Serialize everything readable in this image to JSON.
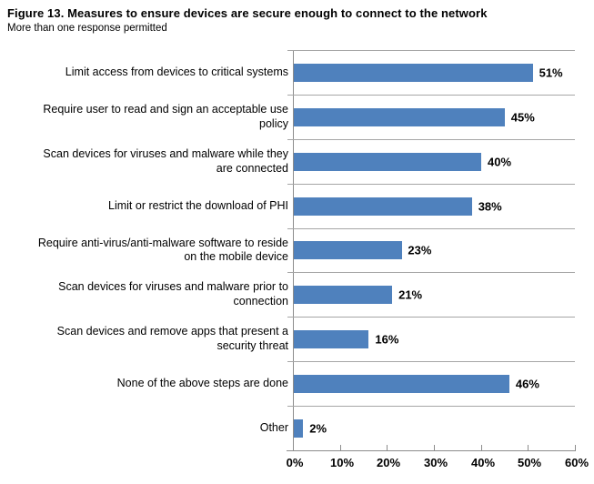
{
  "colors": {
    "bar": "#4F81BD",
    "gridline": "#A6A6A6",
    "axis": "#8C8C8C",
    "text": "#000000",
    "background": "#FFFFFF"
  },
  "chart_data": {
    "type": "bar",
    "orientation": "horizontal",
    "title": "Figure 13. Measures to ensure devices are secure enough to connect to the network",
    "subtitle": "More than one response permitted",
    "categories": [
      "Limit access from devices to critical systems",
      "Require user to read and sign an acceptable use\npolicy",
      "Scan devices for viruses and malware while they\nare connected",
      "Limit or restrict the download of PHI",
      "Require anti-virus/anti-malware software to reside\non the mobile device",
      "Scan devices for viruses and malware prior to\nconnection",
      "Scan devices and remove apps that present a\nsecurity threat",
      "None of the above steps are done",
      "Other"
    ],
    "values": [
      51,
      45,
      40,
      38,
      23,
      21,
      16,
      46,
      2
    ],
    "value_labels": [
      "51%",
      "45%",
      "40%",
      "38%",
      "23%",
      "21%",
      "16%",
      "46%",
      "2%"
    ],
    "xlabel": "",
    "ylabel": "",
    "xlim": [
      0,
      60
    ],
    "x_tick_values": [
      0,
      10,
      20,
      30,
      40,
      50,
      60
    ],
    "x_tick_labels": [
      "0%",
      "10%",
      "20%",
      "30%",
      "40%",
      "50%",
      "60%"
    ],
    "grid": "horizontal category separator lines only",
    "legend": "none"
  }
}
